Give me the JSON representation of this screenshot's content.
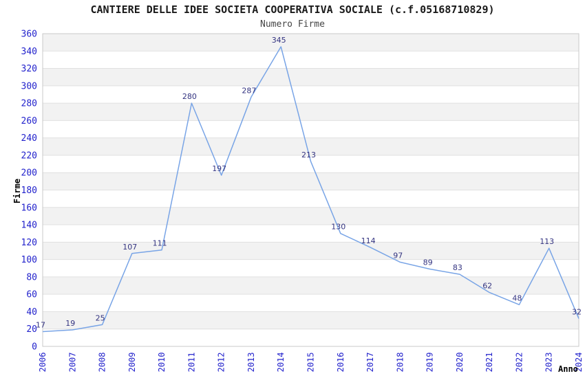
{
  "chart_data": {
    "type": "line",
    "title": "CANTIERE DELLE IDEE SOCIETA COOPERATIVA SOCIALE (c.f.05168710829)",
    "subtitle": "Numero Firme",
    "xlabel": "Anno",
    "ylabel": "Firme",
    "x": [
      2006,
      2007,
      2008,
      2009,
      2010,
      2011,
      2012,
      2013,
      2014,
      2015,
      2016,
      2017,
      2018,
      2019,
      2020,
      2021,
      2022,
      2023,
      2024
    ],
    "series": [
      {
        "name": "Numero Firme",
        "values": [
          17,
          19,
          25,
          107,
          111,
          280,
          197,
          287,
          345,
          213,
          130,
          114,
          97,
          89,
          83,
          62,
          48,
          113,
          32
        ]
      }
    ],
    "ylim": [
      0,
      360
    ],
    "ytick_step": 20,
    "grid": "horizontal gridlines with alternating shaded bands",
    "legend": "none",
    "point_labels": true,
    "colors": {
      "line": "#78a4e6",
      "tick_label": "#2222cc",
      "point_label": "#333380",
      "band_gray": "#f2f2f2",
      "band_white": "#ffffff",
      "gridline": "#e0e0e0",
      "plot_border": "#c9c9c9",
      "title": "#1a1a1a",
      "subtitle": "#444444",
      "axis_title": "#000000"
    }
  }
}
